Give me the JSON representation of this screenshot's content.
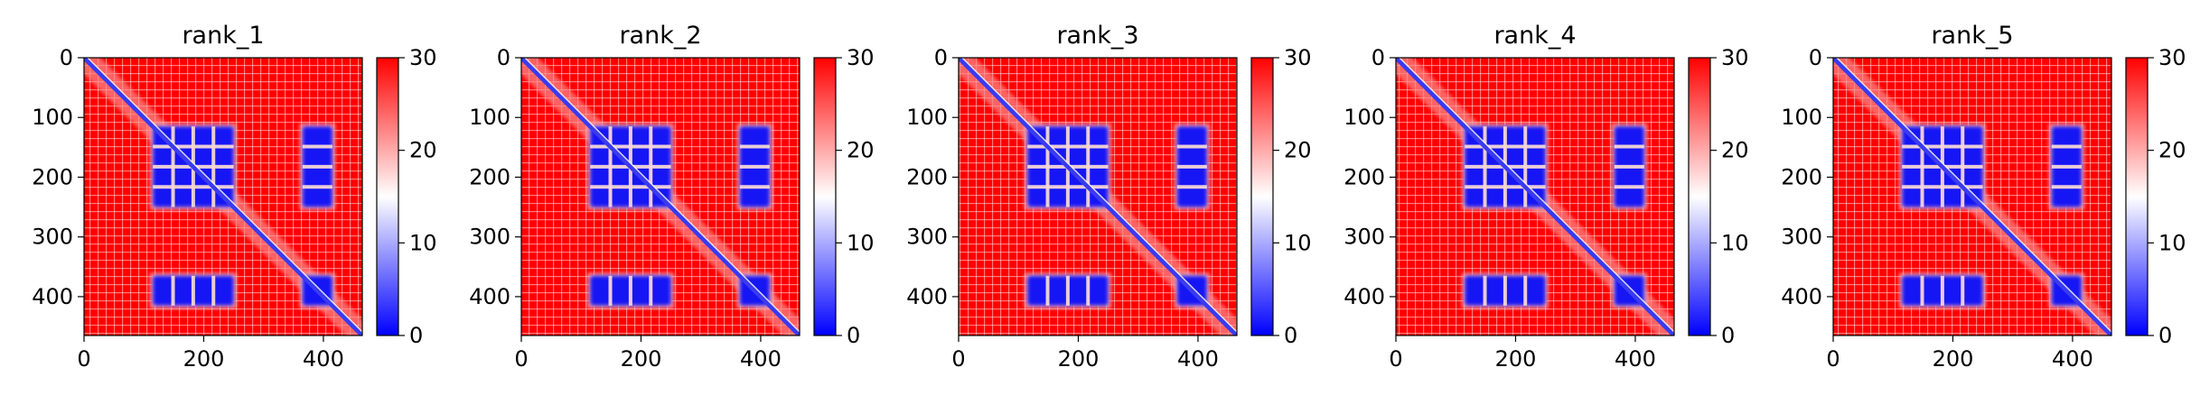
{
  "chart_data": [
    {
      "type": "heatmap",
      "title": "rank_1",
      "xlim": [
        0,
        465
      ],
      "ylim": [
        465,
        0
      ],
      "x_ticks": [
        0,
        200,
        400
      ],
      "y_ticks": [
        0,
        100,
        200,
        300,
        400
      ],
      "colorbar": {
        "range": [
          0,
          30
        ],
        "ticks": [
          0,
          10,
          20,
          30
        ],
        "colormap": "bwr",
        "colors": [
          "#0000ff",
          "#ffffff",
          "#ff0000"
        ]
      },
      "low_blocks": [
        [
          115,
          250,
          115,
          250
        ],
        [
          115,
          250,
          365,
          415
        ],
        [
          365,
          415,
          115,
          250
        ],
        [
          365,
          415,
          365,
          415
        ]
      ],
      "diagonal_value": 0
    },
    {
      "type": "heatmap",
      "title": "rank_2",
      "xlim": [
        0,
        465
      ],
      "ylim": [
        465,
        0
      ],
      "x_ticks": [
        0,
        200,
        400
      ],
      "y_ticks": [
        0,
        100,
        200,
        300,
        400
      ],
      "colorbar": {
        "range": [
          0,
          30
        ],
        "ticks": [
          0,
          10,
          20,
          30
        ],
        "colormap": "bwr",
        "colors": [
          "#0000ff",
          "#ffffff",
          "#ff0000"
        ]
      },
      "low_blocks": [
        [
          115,
          250,
          115,
          250
        ],
        [
          115,
          250,
          365,
          415
        ],
        [
          365,
          415,
          115,
          250
        ],
        [
          365,
          415,
          365,
          415
        ]
      ],
      "diagonal_value": 0
    },
    {
      "type": "heatmap",
      "title": "rank_3",
      "xlim": [
        0,
        465
      ],
      "ylim": [
        465,
        0
      ],
      "x_ticks": [
        0,
        200,
        400
      ],
      "y_ticks": [
        0,
        100,
        200,
        300,
        400
      ],
      "colorbar": {
        "range": [
          0,
          30
        ],
        "ticks": [
          0,
          10,
          20,
          30
        ],
        "colormap": "bwr",
        "colors": [
          "#0000ff",
          "#ffffff",
          "#ff0000"
        ]
      },
      "low_blocks": [
        [
          115,
          250,
          115,
          250
        ],
        [
          115,
          250,
          365,
          415
        ],
        [
          365,
          415,
          115,
          250
        ],
        [
          365,
          415,
          365,
          415
        ]
      ],
      "diagonal_value": 0
    },
    {
      "type": "heatmap",
      "title": "rank_4",
      "xlim": [
        0,
        465
      ],
      "ylim": [
        465,
        0
      ],
      "x_ticks": [
        0,
        200,
        400
      ],
      "y_ticks": [
        0,
        100,
        200,
        300,
        400
      ],
      "colorbar": {
        "range": [
          0,
          30
        ],
        "ticks": [
          0,
          10,
          20,
          30
        ],
        "colormap": "bwr",
        "colors": [
          "#0000ff",
          "#ffffff",
          "#ff0000"
        ]
      },
      "low_blocks": [
        [
          115,
          250,
          115,
          250
        ],
        [
          115,
          250,
          365,
          415
        ],
        [
          365,
          415,
          115,
          250
        ],
        [
          365,
          415,
          365,
          415
        ]
      ],
      "diagonal_value": 0
    },
    {
      "type": "heatmap",
      "title": "rank_5",
      "xlim": [
        0,
        465
      ],
      "ylim": [
        465,
        0
      ],
      "x_ticks": [
        0,
        200,
        400
      ],
      "y_ticks": [
        0,
        100,
        200,
        300,
        400
      ],
      "colorbar": {
        "range": [
          0,
          30
        ],
        "ticks": [
          0,
          10,
          20,
          30
        ],
        "colormap": "bwr",
        "colors": [
          "#0000ff",
          "#ffffff",
          "#ff0000"
        ]
      },
      "low_blocks": [
        [
          115,
          250,
          115,
          250
        ],
        [
          115,
          250,
          365,
          415
        ],
        [
          365,
          415,
          115,
          250
        ],
        [
          365,
          415,
          365,
          415
        ]
      ],
      "diagonal_value": 0
    }
  ]
}
